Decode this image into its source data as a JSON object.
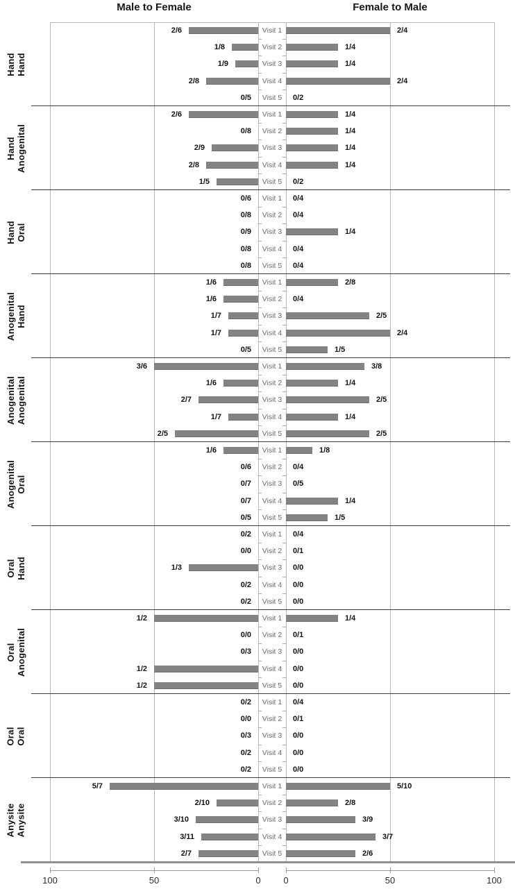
{
  "titles": {
    "left": "Male to Female",
    "right": "Female to Male"
  },
  "axis": {
    "left": [
      "100",
      "50",
      "0"
    ],
    "right": [
      "0",
      "50",
      "100"
    ]
  },
  "colors": {
    "bar": "#838383",
    "bar_edge": "#6b6b6b",
    "gridline": "#b7b7b7",
    "separator": "#3a3a3a",
    "visit_text": "#6c6c6c",
    "value_text": "#111111"
  },
  "chart_data": {
    "type": "bar",
    "variant": "butterfly",
    "orientation": "horizontal",
    "bar_label_format": "numerator/denominator",
    "column_titles": [
      "Male to Female",
      "Female to Male"
    ],
    "visits": [
      "Visit 1",
      "Visit 2",
      "Visit 3",
      "Visit 4",
      "Visit 5"
    ],
    "x_axis": {
      "left_ticks": [
        100,
        50,
        0
      ],
      "right_ticks": [
        0,
        50,
        100
      ],
      "max": 100,
      "gridline_at": 50,
      "units": "percent"
    },
    "panels": [
      {
        "row_label_lines": [
          "Hand",
          "Hand"
        ],
        "series": [
          {
            "name": "Male to Female",
            "values": [
              {
                "label": "2/6",
                "pct": 33.3
              },
              {
                "label": "1/8",
                "pct": 12.5
              },
              {
                "label": "1/9",
                "pct": 11.1
              },
              {
                "label": "2/8",
                "pct": 25
              },
              {
                "label": "0/5",
                "pct": 0
              }
            ]
          },
          {
            "name": "Female to Male",
            "values": [
              {
                "label": "2/4",
                "pct": 50
              },
              {
                "label": "1/4",
                "pct": 25
              },
              {
                "label": "1/4",
                "pct": 25
              },
              {
                "label": "2/4",
                "pct": 50
              },
              {
                "label": "0/2",
                "pct": 0
              }
            ]
          }
        ]
      },
      {
        "row_label_lines": [
          "Hand",
          "Anogenital"
        ],
        "series": [
          {
            "name": "Male to Female",
            "values": [
              {
                "label": "2/6",
                "pct": 33.3
              },
              {
                "label": "0/8",
                "pct": 0
              },
              {
                "label": "2/9",
                "pct": 22.2
              },
              {
                "label": "2/8",
                "pct": 25
              },
              {
                "label": "1/5",
                "pct": 20
              }
            ]
          },
          {
            "name": "Female to Male",
            "values": [
              {
                "label": "1/4",
                "pct": 25
              },
              {
                "label": "1/4",
                "pct": 25
              },
              {
                "label": "1/4",
                "pct": 25
              },
              {
                "label": "1/4",
                "pct": 25
              },
              {
                "label": "0/2",
                "pct": 0
              }
            ]
          }
        ]
      },
      {
        "row_label_lines": [
          "Hand",
          "Oral"
        ],
        "series": [
          {
            "name": "Male to Female",
            "values": [
              {
                "label": "0/6",
                "pct": 0
              },
              {
                "label": "0/8",
                "pct": 0
              },
              {
                "label": "0/9",
                "pct": 0
              },
              {
                "label": "0/8",
                "pct": 0
              },
              {
                "label": "0/8",
                "pct": 0
              }
            ]
          },
          {
            "name": "Female to Male",
            "values": [
              {
                "label": "0/4",
                "pct": 0
              },
              {
                "label": "0/4",
                "pct": 0
              },
              {
                "label": "1/4",
                "pct": 25
              },
              {
                "label": "0/4",
                "pct": 0
              },
              {
                "label": "0/4",
                "pct": 0
              }
            ]
          }
        ]
      },
      {
        "row_label_lines": [
          "Anogenital",
          "Hand"
        ],
        "series": [
          {
            "name": "Male to Female",
            "values": [
              {
                "label": "1/6",
                "pct": 16.7
              },
              {
                "label": "1/6",
                "pct": 16.7
              },
              {
                "label": "1/7",
                "pct": 14.3
              },
              {
                "label": "1/7",
                "pct": 14.3
              },
              {
                "label": "0/5",
                "pct": 0
              }
            ]
          },
          {
            "name": "Female to Male",
            "values": [
              {
                "label": "2/8",
                "pct": 25
              },
              {
                "label": "0/4",
                "pct": 0
              },
              {
                "label": "2/5",
                "pct": 40
              },
              {
                "label": "2/4",
                "pct": 50
              },
              {
                "label": "1/5",
                "pct": 20
              }
            ]
          }
        ]
      },
      {
        "row_label_lines": [
          "Anogenital",
          "Anogenital"
        ],
        "series": [
          {
            "name": "Male to Female",
            "values": [
              {
                "label": "3/6",
                "pct": 50
              },
              {
                "label": "1/6",
                "pct": 16.7
              },
              {
                "label": "2/7",
                "pct": 28.6
              },
              {
                "label": "1/7",
                "pct": 14.3
              },
              {
                "label": "2/5",
                "pct": 40
              }
            ]
          },
          {
            "name": "Female to Male",
            "values": [
              {
                "label": "3/8",
                "pct": 37.5
              },
              {
                "label": "1/4",
                "pct": 25
              },
              {
                "label": "2/5",
                "pct": 40
              },
              {
                "label": "1/4",
                "pct": 25
              },
              {
                "label": "2/5",
                "pct": 40
              }
            ]
          }
        ]
      },
      {
        "row_label_lines": [
          "Anogenital",
          "Oral"
        ],
        "series": [
          {
            "name": "Male to Female",
            "values": [
              {
                "label": "1/6",
                "pct": 16.7
              },
              {
                "label": "0/6",
                "pct": 0
              },
              {
                "label": "0/7",
                "pct": 0
              },
              {
                "label": "0/7",
                "pct": 0
              },
              {
                "label": "0/5",
                "pct": 0
              }
            ]
          },
          {
            "name": "Female to Male",
            "values": [
              {
                "label": "1/8",
                "pct": 12.5
              },
              {
                "label": "0/4",
                "pct": 0
              },
              {
                "label": "0/5",
                "pct": 0
              },
              {
                "label": "1/4",
                "pct": 25
              },
              {
                "label": "1/5",
                "pct": 20
              }
            ]
          }
        ]
      },
      {
        "row_label_lines": [
          "Oral",
          "Hand"
        ],
        "series": [
          {
            "name": "Male to Female",
            "values": [
              {
                "label": "0/2",
                "pct": 0
              },
              {
                "label": "0/0",
                "pct": 0
              },
              {
                "label": "1/3",
                "pct": 33.3
              },
              {
                "label": "0/2",
                "pct": 0
              },
              {
                "label": "0/2",
                "pct": 0
              }
            ]
          },
          {
            "name": "Female to Male",
            "values": [
              {
                "label": "0/4",
                "pct": 0
              },
              {
                "label": "0/1",
                "pct": 0
              },
              {
                "label": "0/0",
                "pct": 0
              },
              {
                "label": "0/0",
                "pct": 0
              },
              {
                "label": "0/0",
                "pct": 0
              }
            ]
          }
        ]
      },
      {
        "row_label_lines": [
          "Oral",
          "Anogenital"
        ],
        "series": [
          {
            "name": "Male to Female",
            "values": [
              {
                "label": "1/2",
                "pct": 50
              },
              {
                "label": "0/0",
                "pct": 0
              },
              {
                "label": "0/3",
                "pct": 0
              },
              {
                "label": "1/2",
                "pct": 50
              },
              {
                "label": "1/2",
                "pct": 50
              }
            ]
          },
          {
            "name": "Female to Male",
            "values": [
              {
                "label": "1/4",
                "pct": 25
              },
              {
                "label": "0/1",
                "pct": 0
              },
              {
                "label": "0/0",
                "pct": 0
              },
              {
                "label": "0/0",
                "pct": 0
              },
              {
                "label": "0/0",
                "pct": 0
              }
            ]
          }
        ]
      },
      {
        "row_label_lines": [
          "Oral",
          "Oral"
        ],
        "series": [
          {
            "name": "Male to Female",
            "values": [
              {
                "label": "0/2",
                "pct": 0
              },
              {
                "label": "0/0",
                "pct": 0
              },
              {
                "label": "0/3",
                "pct": 0
              },
              {
                "label": "0/2",
                "pct": 0
              },
              {
                "label": "0/2",
                "pct": 0
              }
            ]
          },
          {
            "name": "Female to Male",
            "values": [
              {
                "label": "0/4",
                "pct": 0
              },
              {
                "label": "0/1",
                "pct": 0
              },
              {
                "label": "0/0",
                "pct": 0
              },
              {
                "label": "0/0",
                "pct": 0
              },
              {
                "label": "0/0",
                "pct": 0
              }
            ]
          }
        ]
      },
      {
        "row_label_lines": [
          "Anysite",
          "Anysite"
        ],
        "series": [
          {
            "name": "Male to Female",
            "values": [
              {
                "label": "5/7",
                "pct": 71.4
              },
              {
                "label": "2/10",
                "pct": 20
              },
              {
                "label": "3/10",
                "pct": 30
              },
              {
                "label": "3/11",
                "pct": 27.3
              },
              {
                "label": "2/7",
                "pct": 28.6
              }
            ]
          },
          {
            "name": "Female to Male",
            "values": [
              {
                "label": "5/10",
                "pct": 50
              },
              {
                "label": "2/8",
                "pct": 25
              },
              {
                "label": "3/9",
                "pct": 33.3
              },
              {
                "label": "3/7",
                "pct": 42.9
              },
              {
                "label": "2/6",
                "pct": 33.3
              }
            ]
          }
        ]
      }
    ]
  }
}
